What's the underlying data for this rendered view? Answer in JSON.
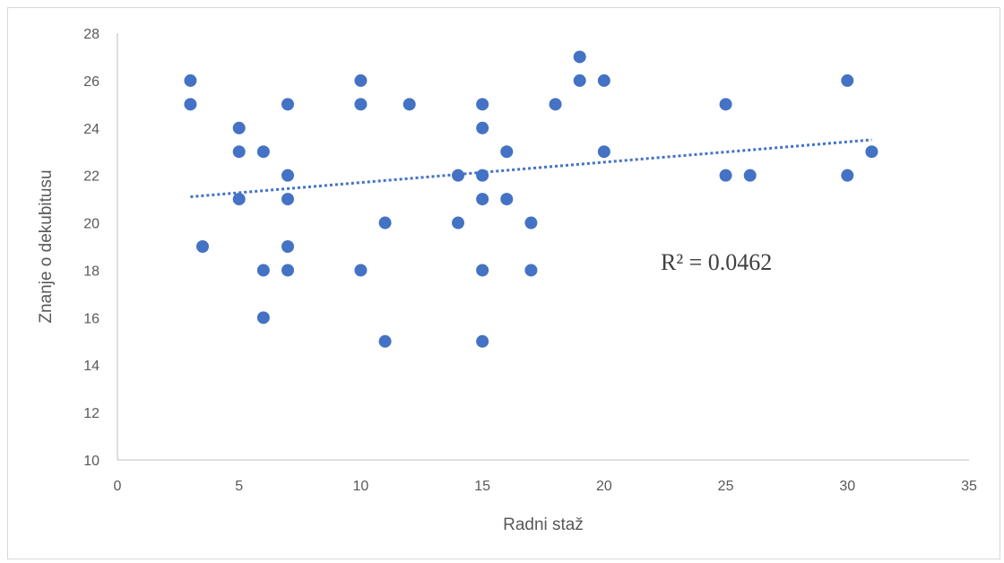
{
  "chart_data": {
    "type": "scatter",
    "xlabel": "Radni staž",
    "ylabel": "Znanje o dekubitusu",
    "xlim": [
      0,
      35
    ],
    "ylim": [
      10,
      28
    ],
    "x_ticks": [
      0,
      5,
      10,
      15,
      20,
      25,
      30,
      35
    ],
    "y_ticks": [
      10,
      12,
      14,
      16,
      18,
      20,
      22,
      24,
      26,
      28
    ],
    "grid": false,
    "legend": "none",
    "marker_color": "#4472C4",
    "trendline": {
      "type": "linear",
      "style": "dotted",
      "color": "#4472C4",
      "x_start": 3,
      "y_start": 21.1,
      "x_end": 31,
      "y_end": 23.5,
      "r_squared_label": "R² = 0.0462"
    },
    "points": [
      {
        "x": 3,
        "y": 26
      },
      {
        "x": 3,
        "y": 25
      },
      {
        "x": 3.5,
        "y": 19
      },
      {
        "x": 5,
        "y": 24
      },
      {
        "x": 5,
        "y": 23
      },
      {
        "x": 5,
        "y": 21
      },
      {
        "x": 6,
        "y": 23
      },
      {
        "x": 6,
        "y": 18
      },
      {
        "x": 6,
        "y": 16
      },
      {
        "x": 7,
        "y": 25
      },
      {
        "x": 7,
        "y": 22
      },
      {
        "x": 7,
        "y": 21
      },
      {
        "x": 7,
        "y": 19
      },
      {
        "x": 7,
        "y": 18
      },
      {
        "x": 10,
        "y": 26
      },
      {
        "x": 10,
        "y": 25
      },
      {
        "x": 10,
        "y": 18
      },
      {
        "x": 11,
        "y": 20
      },
      {
        "x": 11,
        "y": 15
      },
      {
        "x": 12,
        "y": 25
      },
      {
        "x": 14,
        "y": 22
      },
      {
        "x": 14,
        "y": 20
      },
      {
        "x": 15,
        "y": 25
      },
      {
        "x": 15,
        "y": 24
      },
      {
        "x": 15,
        "y": 22
      },
      {
        "x": 15,
        "y": 21
      },
      {
        "x": 15,
        "y": 18
      },
      {
        "x": 15,
        "y": 15
      },
      {
        "x": 16,
        "y": 23
      },
      {
        "x": 16,
        "y": 21
      },
      {
        "x": 17,
        "y": 20
      },
      {
        "x": 17,
        "y": 18
      },
      {
        "x": 18,
        "y": 25
      },
      {
        "x": 19,
        "y": 27
      },
      {
        "x": 19,
        "y": 26
      },
      {
        "x": 20,
        "y": 26
      },
      {
        "x": 20,
        "y": 23
      },
      {
        "x": 25,
        "y": 25
      },
      {
        "x": 25,
        "y": 22
      },
      {
        "x": 26,
        "y": 22
      },
      {
        "x": 30,
        "y": 26
      },
      {
        "x": 30,
        "y": 22
      },
      {
        "x": 31,
        "y": 23
      }
    ]
  }
}
